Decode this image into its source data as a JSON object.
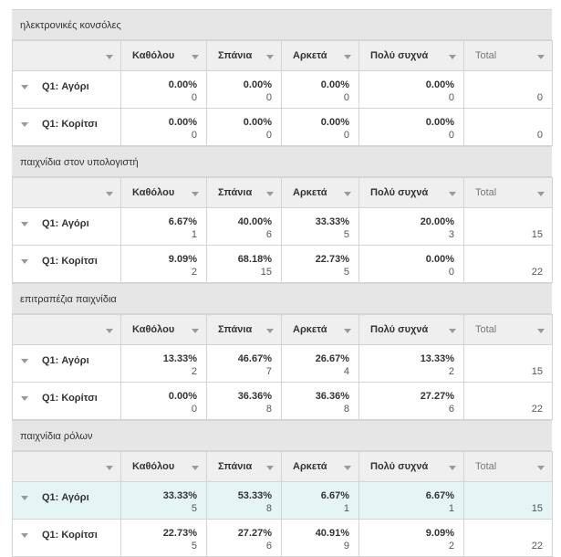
{
  "columns": {
    "c1": "Καθόλου",
    "c2": "Σπάνια",
    "c3": "Αρκετά",
    "c4": "Πολύ συχνά",
    "total": "Total"
  },
  "sections": [
    {
      "title": "ηλεκτρονικές κονσόλες",
      "rows": [
        {
          "label": "Q1: Αγόρι",
          "c1p": "0.00%",
          "c1n": "0",
          "c2p": "0.00%",
          "c2n": "0",
          "c3p": "0.00%",
          "c3n": "0",
          "c4p": "0.00%",
          "c4n": "0",
          "total": "0"
        },
        {
          "label": "Q1: Κορίτσι",
          "c1p": "0.00%",
          "c1n": "0",
          "c2p": "0.00%",
          "c2n": "0",
          "c3p": "0.00%",
          "c3n": "0",
          "c4p": "0.00%",
          "c4n": "0",
          "total": "0"
        }
      ]
    },
    {
      "title": "παιχνίδια στον υπολογιστή",
      "rows": [
        {
          "label": "Q1: Αγόρι",
          "c1p": "6.67%",
          "c1n": "1",
          "c2p": "40.00%",
          "c2n": "6",
          "c3p": "33.33%",
          "c3n": "5",
          "c4p": "20.00%",
          "c4n": "3",
          "total": "15"
        },
        {
          "label": "Q1: Κορίτσι",
          "c1p": "9.09%",
          "c1n": "2",
          "c2p": "68.18%",
          "c2n": "15",
          "c3p": "22.73%",
          "c3n": "5",
          "c4p": "0.00%",
          "c4n": "0",
          "total": "22"
        }
      ]
    },
    {
      "title": "επιτραπέζια παιχνίδια",
      "rows": [
        {
          "label": "Q1: Αγόρι",
          "c1p": "13.33%",
          "c1n": "2",
          "c2p": "46.67%",
          "c2n": "7",
          "c3p": "26.67%",
          "c3n": "4",
          "c4p": "13.33%",
          "c4n": "2",
          "total": "15"
        },
        {
          "label": "Q1: Κορίτσι",
          "c1p": "0.00%",
          "c1n": "0",
          "c2p": "36.36%",
          "c2n": "8",
          "c3p": "36.36%",
          "c3n": "8",
          "c4p": "27.27%",
          "c4n": "6",
          "total": "22"
        }
      ]
    },
    {
      "title": "παιχνίδια ρόλων",
      "rows": [
        {
          "label": "Q1: Αγόρι",
          "c1p": "33.33%",
          "c1n": "5",
          "c2p": "53.33%",
          "c2n": "8",
          "c3p": "6.67%",
          "c3n": "1",
          "c4p": "6.67%",
          "c4n": "1",
          "total": "15"
        },
        {
          "label": "Q1: Κορίτσι",
          "c1p": "22.73%",
          "c1n": "5",
          "c2p": "27.27%",
          "c2n": "6",
          "c3p": "40.91%",
          "c3n": "9",
          "c4p": "9.09%",
          "c4n": "2",
          "total": "22"
        }
      ]
    }
  ],
  "highlight_color": "#e5f4f4"
}
